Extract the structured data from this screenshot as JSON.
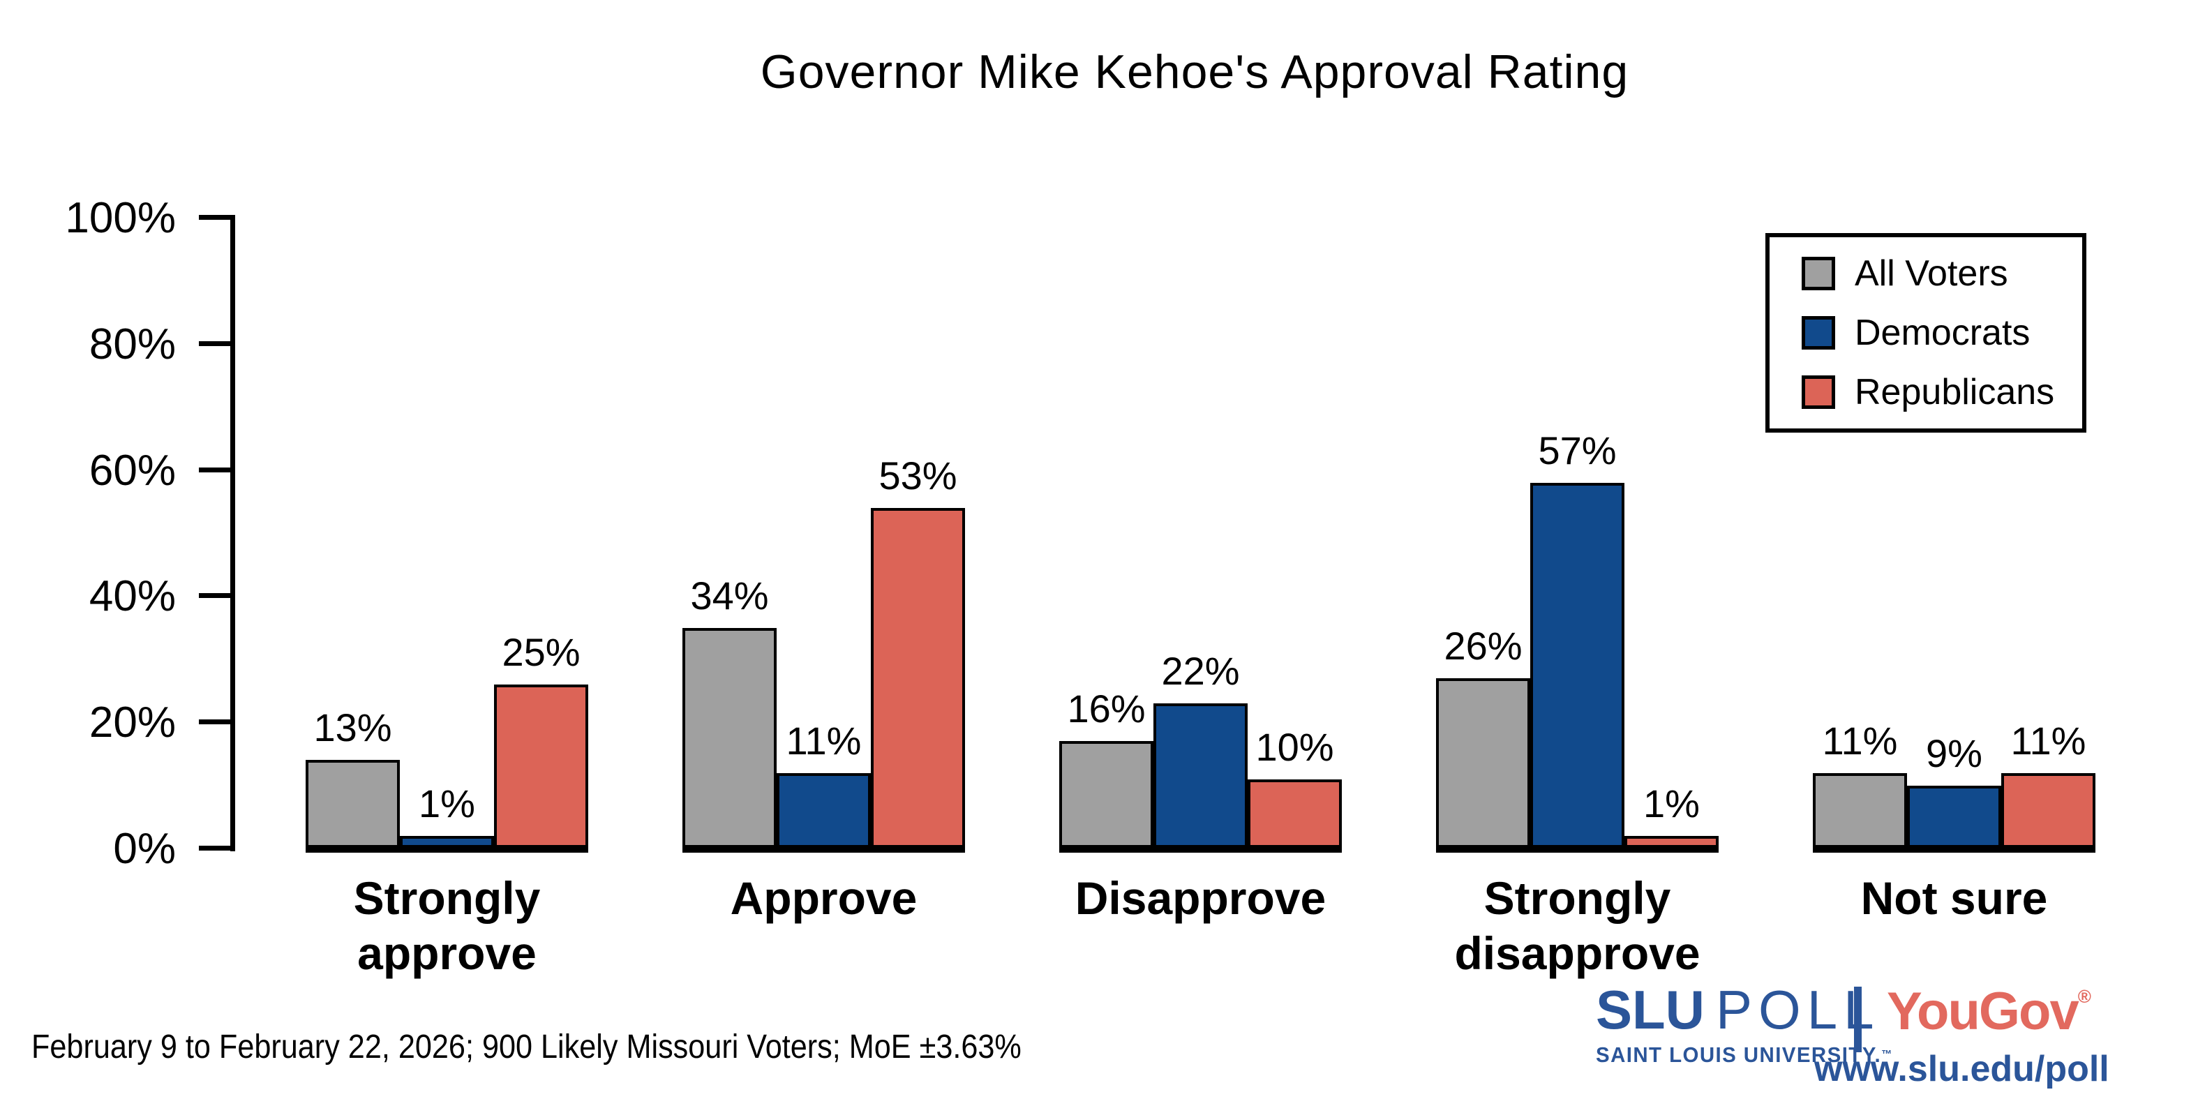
{
  "title": "Governor Mike Kehoe's Approval Rating",
  "footer_note": "February 9 to February 22, 2026; 900 Likely Missouri Voters; MoE ±3.63%",
  "branding": {
    "slu_bold": "SLU",
    "slu_light": "POLL",
    "slu_subtext": "SAINT LOUIS UNIVERSITY.",
    "trademark": "™",
    "yougov": "YouGov",
    "registered": "®",
    "url": "www.slu.edu/poll",
    "slu_blue": "#2b5599",
    "yougov_red": "#e2695e"
  },
  "colors": {
    "background": "#ffffff",
    "axis": "#000000",
    "bar_outline": "#000000"
  },
  "chart_data": {
    "type": "bar",
    "title": "Governor Mike Kehoe's Approval Rating",
    "categories": [
      "Strongly\napprove",
      "Approve",
      "Disapprove",
      "Strongly\ndisapprove",
      "Not sure"
    ],
    "series": [
      {
        "name": "All Voters",
        "color": "#a0a0a0",
        "values": [
          13,
          34,
          16,
          26,
          11
        ]
      },
      {
        "name": "Democrats",
        "color": "#114a8c",
        "values": [
          1,
          11,
          22,
          57,
          9
        ]
      },
      {
        "name": "Republicans",
        "color": "#dc6457",
        "values": [
          25,
          53,
          10,
          1,
          11
        ]
      }
    ],
    "value_suffix": "%",
    "xlabel": "",
    "ylabel": "",
    "ylim": [
      0,
      100
    ],
    "ytick_values": [
      0,
      20,
      40,
      60,
      80,
      100
    ],
    "ytick_labels": [
      "0%",
      "20%",
      "40%",
      "60%",
      "80%",
      "100%"
    ],
    "grid": false,
    "legend_position": "upper right",
    "bar_value_labels": true,
    "source_note": "February 9 to February 22, 2026; 900 Likely Missouri Voters; MoE ±3.63%"
  }
}
